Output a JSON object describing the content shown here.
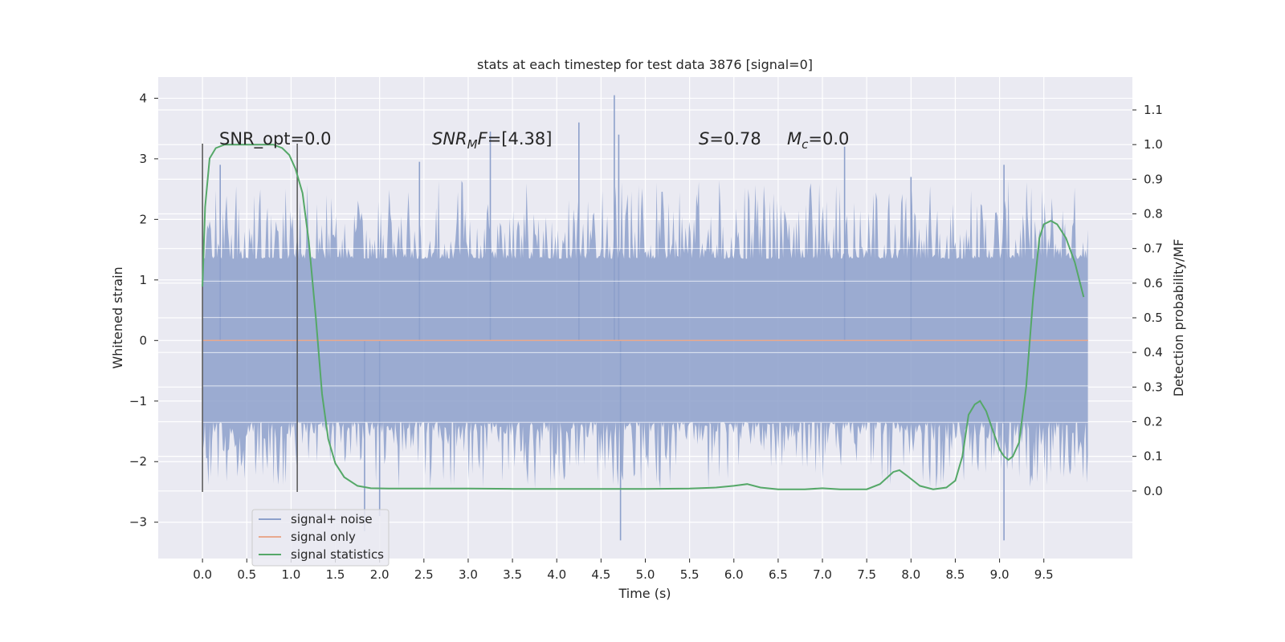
{
  "chart_data": {
    "type": "line",
    "title": "stats at each timestep for test data 3876 [signal=0]",
    "xlabel": "Time (s)",
    "ylabel": "Whitened strain",
    "y2label": "Detection probability/MF",
    "xlim": [
      -0.5,
      10.5
    ],
    "ylim": [
      -3.6,
      4.35
    ],
    "y2lim": [
      -0.195,
      1.195
    ],
    "x_ticks": [
      "0.0",
      "0.5",
      "1.0",
      "1.5",
      "2.0",
      "2.5",
      "3.0",
      "3.5",
      "4.0",
      "4.5",
      "5.0",
      "5.5",
      "6.0",
      "6.5",
      "7.0",
      "7.5",
      "8.0",
      "8.5",
      "9.0",
      "9.5"
    ],
    "y_ticks": [
      "4",
      "3",
      "2",
      "1",
      "0",
      "−1",
      "−2",
      "−3"
    ],
    "y2_ticks": [
      "1.1",
      "1.0",
      "0.9",
      "0.8",
      "0.7",
      "0.6",
      "0.5",
      "0.4",
      "0.3",
      "0.2",
      "0.1",
      "0.0"
    ],
    "grid": true,
    "legend_position": "lower-left",
    "colors": {
      "background": "#eaeaf2",
      "grid": "#ffffff",
      "noise": "#8da0cb",
      "signal": "#e8a98e",
      "stats": "#55a868",
      "vline": "#555555"
    },
    "series": [
      {
        "name": "signal+ noise",
        "axis": "left",
        "x_range": [
          0.0,
          10.0
        ],
        "amplitude_core": 1.0,
        "amplitude_peak": 4.05,
        "amplitude_min": -3.3
      },
      {
        "name": "signal only",
        "axis": "left",
        "x": [
          0.0,
          10.0
        ],
        "y": [
          0.0,
          0.0
        ]
      },
      {
        "name": "signal statistics",
        "axis": "right",
        "x": [
          0.0,
          0.03,
          0.08,
          0.15,
          0.25,
          0.4,
          0.6,
          0.8,
          0.9,
          0.98,
          1.05,
          1.13,
          1.2,
          1.28,
          1.35,
          1.42,
          1.5,
          1.6,
          1.75,
          1.9,
          2.1,
          2.5,
          3.0,
          3.5,
          4.0,
          4.5,
          5.0,
          5.5,
          5.8,
          6.0,
          6.15,
          6.3,
          6.5,
          6.8,
          7.0,
          7.2,
          7.5,
          7.65,
          7.8,
          7.87,
          7.95,
          8.1,
          8.25,
          8.4,
          8.5,
          8.58,
          8.65,
          8.72,
          8.78,
          8.85,
          8.93,
          9.0,
          9.05,
          9.1,
          9.15,
          9.22,
          9.3,
          9.38,
          9.45,
          9.5,
          9.58,
          9.65,
          9.75,
          9.85,
          9.95
        ],
        "y": [
          0.59,
          0.82,
          0.96,
          0.99,
          1.0,
          1.0,
          1.0,
          1.0,
          0.99,
          0.97,
          0.93,
          0.86,
          0.72,
          0.5,
          0.28,
          0.15,
          0.08,
          0.04,
          0.015,
          0.008,
          0.007,
          0.007,
          0.007,
          0.006,
          0.006,
          0.006,
          0.006,
          0.007,
          0.01,
          0.015,
          0.02,
          0.01,
          0.005,
          0.005,
          0.008,
          0.005,
          0.005,
          0.02,
          0.055,
          0.06,
          0.045,
          0.015,
          0.005,
          0.01,
          0.03,
          0.1,
          0.22,
          0.25,
          0.26,
          0.23,
          0.17,
          0.12,
          0.1,
          0.09,
          0.1,
          0.14,
          0.3,
          0.56,
          0.73,
          0.77,
          0.78,
          0.77,
          0.73,
          0.66,
          0.56
        ]
      }
    ],
    "vlines": [
      {
        "x": 0.0,
        "y_range": [
          -2.5,
          3.25
        ]
      },
      {
        "x": 1.07,
        "y_range": [
          -2.5,
          3.25
        ]
      }
    ],
    "annotations": [
      {
        "plain": "SNR_opt=0.0"
      },
      {
        "italic": "SNR",
        "sub": "M",
        "italic2": "F",
        "rest": "=[4.38]"
      },
      {
        "italic": "S",
        "rest": "=0.78"
      },
      {
        "italic": "M",
        "sub": "c",
        "rest": "=0.0"
      }
    ]
  }
}
